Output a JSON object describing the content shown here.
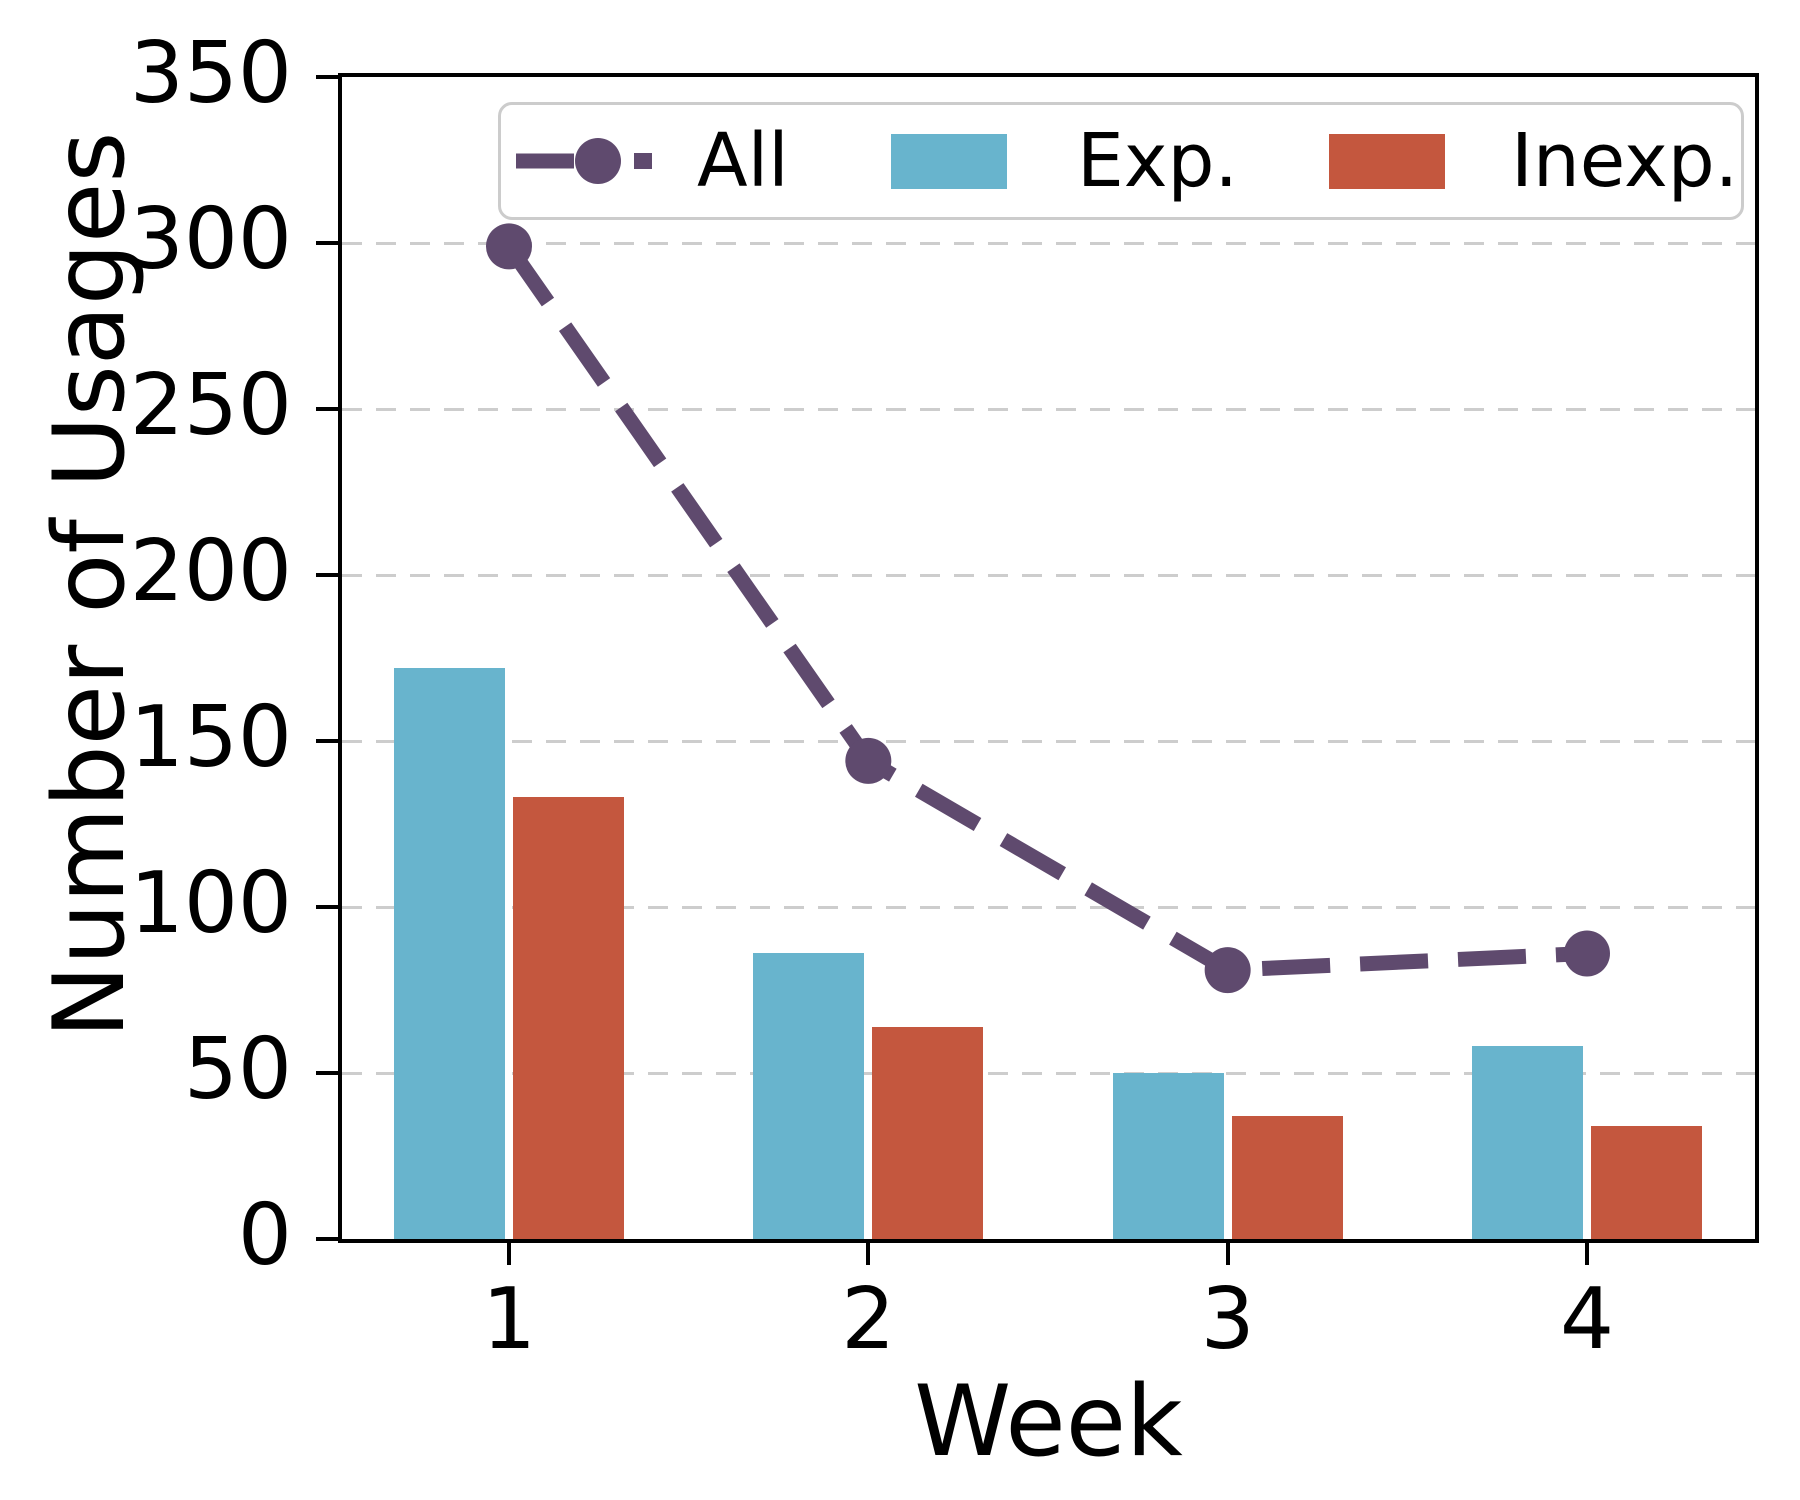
{
  "chart_data": {
    "type": "bar",
    "subtype": "grouped vertical bars with overlaid dashed line series",
    "categories": [
      "1",
      "2",
      "3",
      "4"
    ],
    "series": [
      {
        "name": "All",
        "type": "line",
        "values": [
          299,
          144,
          81,
          86
        ],
        "color": "#5f4a6e",
        "line_style": "dashed",
        "marker": "circle"
      },
      {
        "name": "Exp.",
        "type": "bar",
        "values": [
          172,
          86,
          50,
          58
        ],
        "color": "#68b4cd"
      },
      {
        "name": "Inexp.",
        "type": "bar",
        "values": [
          133,
          64,
          37,
          34
        ],
        "color": "#c4573e"
      }
    ],
    "title": "",
    "xlabel": "Week",
    "ylabel": "Number of Usages",
    "ylim": [
      0,
      350
    ],
    "yticks": [
      0,
      50,
      100,
      150,
      200,
      250,
      300,
      350
    ],
    "grid": "horizontal dashed",
    "grid_color": "#cdcdcd",
    "legend_position": "top inside, horizontal row"
  },
  "axes": {
    "spine_color": "#000000",
    "background": "#ffffff",
    "tick_color": "#000000"
  }
}
